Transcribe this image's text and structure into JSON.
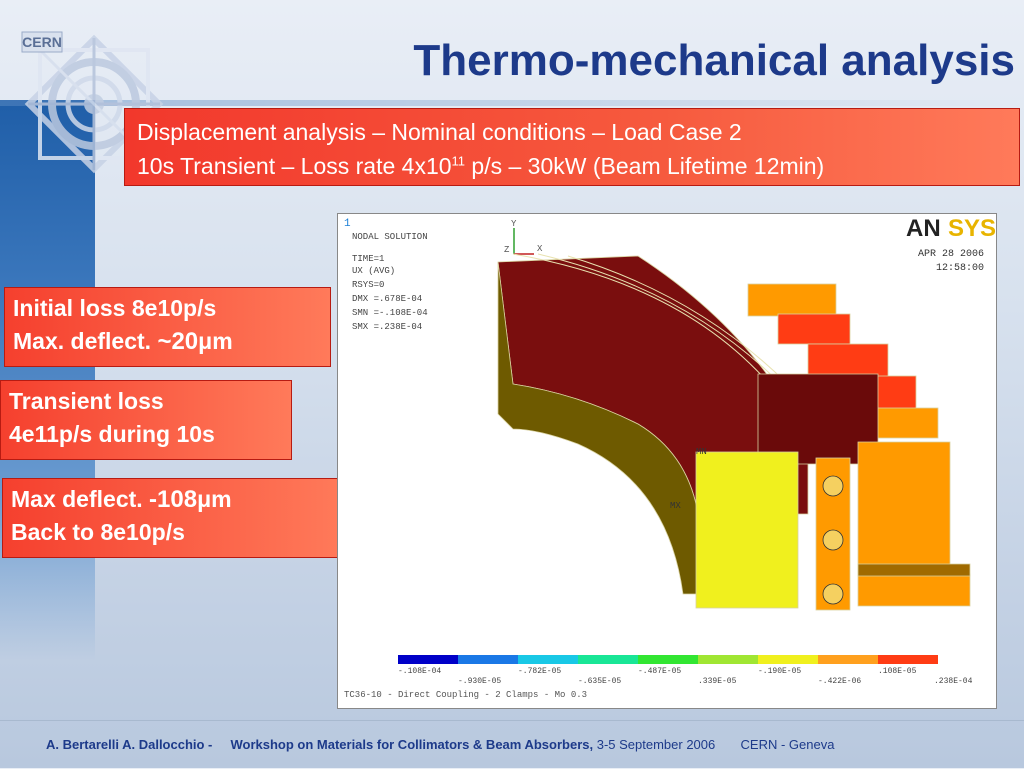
{
  "slide": {
    "title": "Thermo-mechanical analysis",
    "logo_text": "CERN"
  },
  "subtitle": {
    "line1": "Displacement analysis – Nominal conditions – Load Case 2",
    "line2_pre": "10s Transient – Loss rate 4x10",
    "line2_sup": "11",
    "line2_post": " p/s – 30kW (Beam Lifetime 12min)"
  },
  "callouts": {
    "box1": {
      "line1": "Initial loss 8e10p/s",
      "line2_pre": "Max. deflect. ",
      "line2_em": "~20",
      "line2_unit": "μ",
      "line2_suffix": "m"
    },
    "box2": {
      "line1": "Transient loss",
      "line2": "4e11p/s during 10s"
    },
    "box3": {
      "line1_pre": "Max deflect. ",
      "line1_em": "-108",
      "line1_unit": "μ",
      "line1_suffix": "m",
      "line2": "Back to 8e10p/s"
    }
  },
  "ansys": {
    "window_number": "1",
    "brand_a": "AN",
    "brand_b": "SYS",
    "date": "APR 28 2006",
    "time": "12:58:00",
    "solution_lines": [
      "NODAL SOLUTION",
      "TIME=1",
      "UX        (AVG)",
      "RSYS=0",
      "DMX =.678E-04",
      "SMN =-.108E-04",
      "SMX =.238E-04"
    ],
    "axis_y": "Y",
    "axis_z": "Z",
    "axis_x": "X",
    "label_mn": "MN",
    "label_mx": "MX",
    "legend_colors": [
      "#0000c8",
      "#1a78e6",
      "#19c8e6",
      "#19e696",
      "#32e632",
      "#a0e632",
      "#f0f01e",
      "#ffa01e",
      "#ff3c14"
    ],
    "legend_ticks_top": [
      "-.108E-04",
      "-.782E-05",
      "-.487E-05",
      "-.190E-05",
      ".108E-05"
    ],
    "legend_ticks_bottom": [
      "-.930E-05",
      "-.635E-05",
      ".339E-05",
      "-.422E-06",
      ".238E-04"
    ],
    "caption": "TC36-10 - Direct Coupling - 2 Clamps - Mo 0.3"
  },
  "footer": {
    "authors": "A. Bertarelli    A. Dallocchio    -",
    "workshop": "Workshop on Materials for Collimators & Beam Absorbers,",
    "dates": " 3-5 September 2006",
    "place": "CERN - Geneva"
  }
}
